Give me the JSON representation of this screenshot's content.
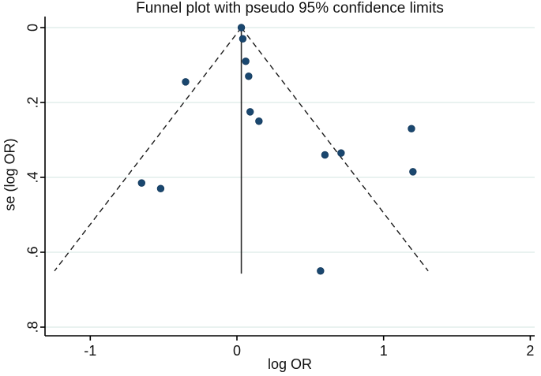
{
  "figure": {
    "kind": "stata-funnel-plot"
  },
  "chart_data": {
    "type": "scatter",
    "title": "Funnel plot with pseudo 95% confidence limits",
    "xlabel": "log OR",
    "ylabel": "se (log OR)",
    "x_ticks": [
      -1,
      0,
      1,
      2
    ],
    "x_tick_labels": [
      "-1",
      "0",
      "1",
      "2"
    ],
    "y_ticks": [
      0,
      0.2,
      0.4,
      0.6,
      0.8
    ],
    "y_tick_labels": [
      "0",
      ".2",
      ".4",
      ".6",
      ".8"
    ],
    "xlim": [
      -1.31,
      2.03
    ],
    "ylim": [
      0.82,
      0
    ],
    "y_axis_reversed": true,
    "grid": "horizontal-gridlines-on",
    "legend": "none",
    "points": [
      {
        "log_or": 0.03,
        "se": 0.0
      },
      {
        "log_or": 0.04,
        "se": 0.03
      },
      {
        "log_or": 0.06,
        "se": 0.09
      },
      {
        "log_or": 0.08,
        "se": 0.13
      },
      {
        "log_or": 0.09,
        "se": 0.225
      },
      {
        "log_or": 0.15,
        "se": 0.25
      },
      {
        "log_or": -0.35,
        "se": 0.145
      },
      {
        "log_or": -0.65,
        "se": 0.415
      },
      {
        "log_or": -0.52,
        "se": 0.43
      },
      {
        "log_or": 0.6,
        "se": 0.34
      },
      {
        "log_or": 0.71,
        "se": 0.335
      },
      {
        "log_or": 1.19,
        "se": 0.27
      },
      {
        "log_or": 1.2,
        "se": 0.385
      },
      {
        "log_or": 0.57,
        "se": 0.65
      }
    ],
    "funnel": {
      "center_log_or": 0.03,
      "z_multiplier": 1.96,
      "se_top": 0,
      "se_bottom": 0.65,
      "line_style": "dashed"
    },
    "pooled_effect_line": {
      "x": 0.03,
      "se_from": 0,
      "se_to": 0.657,
      "line_style": "solid"
    },
    "colors": {
      "point_fill": "#1a476f",
      "point_edge": "#14395c",
      "funnel_line": "#1a1a1a",
      "pooled_line": "#2a2a2a",
      "grid_line": "#e2eeec",
      "axis_line": "#000000",
      "text": "#111111",
      "background": "#ffffff"
    }
  }
}
